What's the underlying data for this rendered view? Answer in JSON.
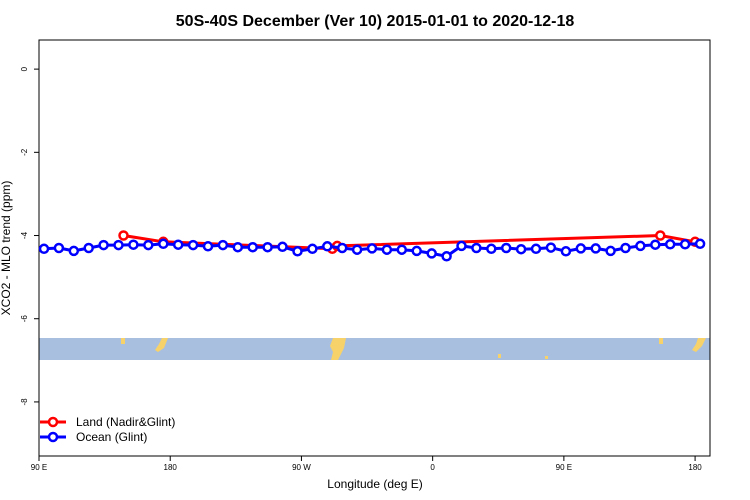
{
  "chart_data": {
    "type": "line",
    "title": "50S-40S December (Ver 10)   2015-01-01 to 2020-12-18",
    "xlabel": "Longitude (deg E)",
    "ylabel": "XCO2 - MLO trend (ppm)",
    "xlim": [
      -90,
      180
    ],
    "ylim": [
      -9.3,
      0.7
    ],
    "x_ticks": [
      {
        "value": -90,
        "label": "90 E"
      },
      {
        "value": -37.2,
        "label": "180"
      },
      {
        "value": 15.6,
        "label": "90 W"
      },
      {
        "value": 68.4,
        "label": "0"
      },
      {
        "value": 121.2,
        "label": "90 E"
      },
      {
        "value": 174,
        "label": "180"
      }
    ],
    "y_ticks": [
      {
        "value": 0,
        "label": "0"
      },
      {
        "value": -2,
        "label": "-2"
      },
      {
        "value": -4,
        "label": "-4"
      },
      {
        "value": -6,
        "label": "-6"
      },
      {
        "value": -8,
        "label": "-8"
      }
    ],
    "series": [
      {
        "name": "Land (Nadir&Glint)",
        "color": "#ff0000",
        "x": [
          -56,
          -40,
          28,
          30,
          160,
          174
        ],
        "y": [
          -4.0,
          -4.15,
          -4.32,
          -4.25,
          -4.0,
          -4.15
        ]
      },
      {
        "name": "Ocean (Glint)",
        "color": "#0000ff",
        "x": [
          -88,
          -82,
          -76,
          -70,
          -64,
          -58,
          -52,
          -46,
          -40,
          -34,
          -28,
          -22,
          -16,
          -10,
          -4,
          2,
          8,
          14,
          20,
          26,
          32,
          38,
          44,
          50,
          56,
          62,
          68,
          74,
          80,
          86,
          92,
          98,
          104,
          110,
          116,
          122,
          128,
          134,
          140,
          146,
          152,
          158,
          164,
          170,
          176
        ],
        "y": [
          -4.32,
          -4.3,
          -4.37,
          -4.3,
          -4.23,
          -4.23,
          -4.22,
          -4.23,
          -4.2,
          -4.22,
          -4.23,
          -4.26,
          -4.23,
          -4.28,
          -4.28,
          -4.28,
          -4.27,
          -4.38,
          -4.32,
          -4.26,
          -4.3,
          -4.34,
          -4.31,
          -4.34,
          -4.34,
          -4.37,
          -4.43,
          -4.5,
          -4.25,
          -4.3,
          -4.32,
          -4.3,
          -4.33,
          -4.32,
          -4.29,
          -4.38,
          -4.31,
          -4.31,
          -4.37,
          -4.3,
          -4.25,
          -4.22,
          -4.21,
          -4.21,
          -4.2
        ]
      }
    ],
    "map_strip": {
      "ocean_color": "#a8bfdf",
      "land_color": "#f7d26a"
    },
    "legend": {
      "position": "bottom-left"
    },
    "grid": false
  }
}
